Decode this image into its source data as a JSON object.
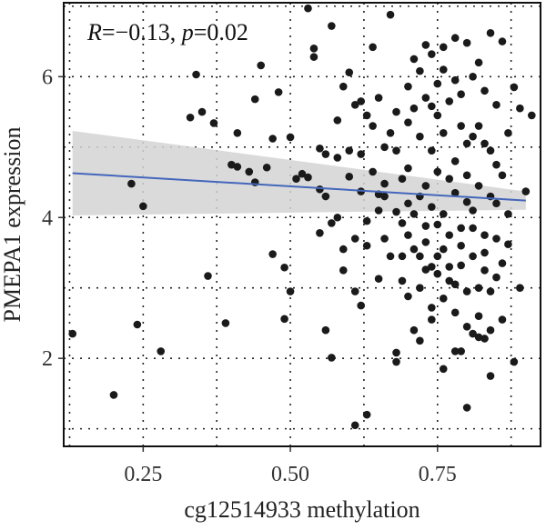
{
  "chart_data": {
    "type": "scatter",
    "xlabel": "cg12514933 methylation",
    "ylabel": "PMEPA1 expression",
    "xlim": [
      0.115,
      0.925
    ],
    "ylim": [
      0.75,
      7.05
    ],
    "x_ticks": [
      0.25,
      0.5,
      0.75
    ],
    "x_tick_labels": [
      "0.25",
      "0.50",
      "0.75"
    ],
    "y_ticks": [
      2,
      4,
      6
    ],
    "y_tick_labels": [
      "2",
      "4",
      "6"
    ],
    "x_grid_extra": [
      0.125,
      0.375,
      0.625,
      0.875
    ],
    "y_grid_extra": [
      1,
      3,
      5,
      7
    ],
    "grid": true,
    "legend": "none",
    "annotation": {
      "r_symbol": "R",
      "r_value": "=−0.13, ",
      "p_symbol": "p",
      "p_value": "=0.02"
    },
    "regression": {
      "x": [
        0.13,
        0.9
      ],
      "y": [
        4.63,
        4.24
      ],
      "ci_lower": [
        4.03,
        4.11
      ],
      "ci_upper": [
        5.23,
        4.37
      ]
    },
    "colors": {
      "point": "#1a1a1a",
      "line": "#4466bb",
      "band": "#d3d3d3",
      "grid": "#222222",
      "frame": "#111111"
    },
    "points": [
      [
        0.13,
        2.35
      ],
      [
        0.2,
        1.48
      ],
      [
        0.23,
        4.48
      ],
      [
        0.24,
        2.48
      ],
      [
        0.25,
        4.16
      ],
      [
        0.28,
        2.1
      ],
      [
        0.33,
        5.42
      ],
      [
        0.34,
        6.03
      ],
      [
        0.35,
        5.5
      ],
      [
        0.36,
        3.17
      ],
      [
        0.37,
        5.34
      ],
      [
        0.39,
        2.5
      ],
      [
        0.4,
        4.75
      ],
      [
        0.41,
        4.72
      ],
      [
        0.41,
        5.2
      ],
      [
        0.43,
        4.65
      ],
      [
        0.44,
        4.5
      ],
      [
        0.44,
        5.68
      ],
      [
        0.45,
        6.16
      ],
      [
        0.46,
        4.71
      ],
      [
        0.47,
        3.48
      ],
      [
        0.47,
        5.12
      ],
      [
        0.48,
        5.78
      ],
      [
        0.49,
        3.29
      ],
      [
        0.49,
        2.56
      ],
      [
        0.5,
        2.95
      ],
      [
        0.5,
        5.14
      ],
      [
        0.51,
        4.55
      ],
      [
        0.52,
        4.62
      ],
      [
        0.53,
        6.97
      ],
      [
        0.53,
        4.57
      ],
      [
        0.54,
        6.4
      ],
      [
        0.54,
        6.28
      ],
      [
        0.55,
        4.4
      ],
      [
        0.55,
        4.98
      ],
      [
        0.56,
        4.9
      ],
      [
        0.56,
        2.4
      ],
      [
        0.57,
        2.01
      ],
      [
        0.57,
        6.72
      ],
      [
        0.58,
        5.38
      ],
      [
        0.58,
        4.0
      ],
      [
        0.59,
        5.86
      ],
      [
        0.59,
        3.55
      ],
      [
        0.6,
        6.06
      ],
      [
        0.61,
        2.95
      ],
      [
        0.61,
        1.05
      ],
      [
        0.62,
        2.75
      ],
      [
        0.62,
        4.37
      ],
      [
        0.63,
        1.2
      ],
      [
        0.63,
        3.6
      ],
      [
        0.64,
        6.42
      ],
      [
        0.65,
        3.13
      ],
      [
        0.65,
        4.33
      ],
      [
        0.66,
        4.48
      ],
      [
        0.67,
        6.88
      ],
      [
        0.68,
        2.08
      ],
      [
        0.68,
        1.95
      ],
      [
        0.69,
        3.45
      ],
      [
        0.7,
        2.88
      ],
      [
        0.71,
        2.4
      ],
      [
        0.72,
        2.25
      ],
      [
        0.73,
        3.26
      ],
      [
        0.74,
        2.72
      ],
      [
        0.75,
        3.2
      ],
      [
        0.76,
        1.85
      ],
      [
        0.77,
        3.1
      ],
      [
        0.78,
        2.1
      ],
      [
        0.79,
        3.32
      ],
      [
        0.8,
        1.3
      ],
      [
        0.81,
        2.35
      ],
      [
        0.82,
        3.0
      ],
      [
        0.83,
        2.28
      ],
      [
        0.84,
        1.75
      ],
      [
        0.85,
        3.15
      ],
      [
        0.86,
        2.55
      ],
      [
        0.87,
        3.62
      ],
      [
        0.88,
        1.95
      ],
      [
        0.89,
        3.0
      ],
      [
        0.9,
        4.37
      ],
      [
        0.91,
        5.45
      ],
      [
        0.89,
        5.55
      ],
      [
        0.88,
        5.85
      ],
      [
        0.86,
        6.5
      ],
      [
        0.84,
        6.62
      ],
      [
        0.82,
        6.2
      ],
      [
        0.8,
        6.48
      ],
      [
        0.78,
        6.55
      ],
      [
        0.76,
        6.42
      ],
      [
        0.74,
        6.32
      ],
      [
        0.72,
        6.08
      ],
      [
        0.7,
        5.86
      ],
      [
        0.68,
        5.5
      ],
      [
        0.66,
        5.0
      ],
      [
        0.64,
        5.3
      ],
      [
        0.62,
        5.65
      ],
      [
        0.6,
        4.58
      ],
      [
        0.58,
        4.85
      ],
      [
        0.56,
        4.3
      ],
      [
        0.55,
        3.78
      ],
      [
        0.57,
        3.92
      ],
      [
        0.59,
        3.25
      ],
      [
        0.61,
        3.7
      ],
      [
        0.63,
        3.95
      ],
      [
        0.65,
        4.1
      ],
      [
        0.67,
        3.45
      ],
      [
        0.69,
        3.92
      ],
      [
        0.71,
        3.55
      ],
      [
        0.73,
        3.88
      ],
      [
        0.75,
        3.45
      ],
      [
        0.77,
        3.75
      ],
      [
        0.79,
        3.6
      ],
      [
        0.81,
        3.85
      ],
      [
        0.83,
        3.5
      ],
      [
        0.85,
        3.7
      ],
      [
        0.87,
        4.05
      ],
      [
        0.86,
        4.6
      ],
      [
        0.84,
        4.95
      ],
      [
        0.82,
        5.3
      ],
      [
        0.8,
        5.05
      ],
      [
        0.78,
        4.8
      ],
      [
        0.76,
        5.2
      ],
      [
        0.74,
        4.95
      ],
      [
        0.72,
        5.15
      ],
      [
        0.7,
        4.7
      ],
      [
        0.68,
        4.95
      ],
      [
        0.66,
        4.3
      ],
      [
        0.64,
        4.65
      ],
      [
        0.62,
        4.9
      ],
      [
        0.6,
        4.95
      ],
      [
        0.71,
        5.55
      ],
      [
        0.73,
        5.7
      ],
      [
        0.75,
        5.9
      ],
      [
        0.77,
        5.65
      ],
      [
        0.79,
        5.75
      ],
      [
        0.81,
        6.0
      ],
      [
        0.83,
        5.8
      ],
      [
        0.85,
        5.6
      ],
      [
        0.87,
        5.2
      ],
      [
        0.72,
        4.3
      ],
      [
        0.74,
        4.15
      ],
      [
        0.76,
        4.05
      ],
      [
        0.78,
        4.35
      ],
      [
        0.8,
        4.22
      ],
      [
        0.82,
        4.45
      ],
      [
        0.84,
        4.3
      ],
      [
        0.7,
        4.2
      ],
      [
        0.68,
        4.08
      ],
      [
        0.66,
        3.7
      ],
      [
        0.72,
        3.0
      ],
      [
        0.74,
        2.55
      ],
      [
        0.76,
        2.85
      ],
      [
        0.78,
        2.65
      ],
      [
        0.8,
        2.95
      ],
      [
        0.82,
        2.6
      ],
      [
        0.84,
        2.4
      ],
      [
        0.79,
        2.1
      ],
      [
        0.81,
        3.45
      ],
      [
        0.83,
        3.25
      ],
      [
        0.77,
        4.55
      ],
      [
        0.75,
        4.65
      ],
      [
        0.73,
        4.45
      ],
      [
        0.69,
        4.55
      ],
      [
        0.67,
        5.2
      ],
      [
        0.65,
        5.7
      ],
      [
        0.63,
        5.45
      ],
      [
        0.61,
        5.6
      ],
      [
        0.71,
        6.25
      ],
      [
        0.73,
        6.45
      ],
      [
        0.75,
        5.45
      ],
      [
        0.79,
        5.3
      ],
      [
        0.81,
        5.15
      ],
      [
        0.83,
        5.05
      ],
      [
        0.85,
        4.75
      ],
      [
        0.8,
        4.6
      ],
      [
        0.78,
        5.95
      ],
      [
        0.76,
        6.1
      ],
      [
        0.74,
        5.58
      ],
      [
        0.7,
        5.35
      ],
      [
        0.69,
        3.1
      ],
      [
        0.71,
        4.05
      ],
      [
        0.73,
        3.65
      ],
      [
        0.75,
        3.9
      ],
      [
        0.77,
        3.3
      ],
      [
        0.79,
        3.85
      ],
      [
        0.81,
        4.1
      ],
      [
        0.83,
        3.75
      ],
      [
        0.85,
        4.2
      ],
      [
        0.86,
        3.35
      ],
      [
        0.84,
        2.95
      ],
      [
        0.82,
        2.3
      ],
      [
        0.8,
        2.45
      ],
      [
        0.78,
        3.05
      ],
      [
        0.76,
        3.55
      ],
      [
        0.74,
        3.3
      ],
      [
        0.72,
        3.45
      ],
      [
        0.7,
        3.75
      ]
    ]
  }
}
